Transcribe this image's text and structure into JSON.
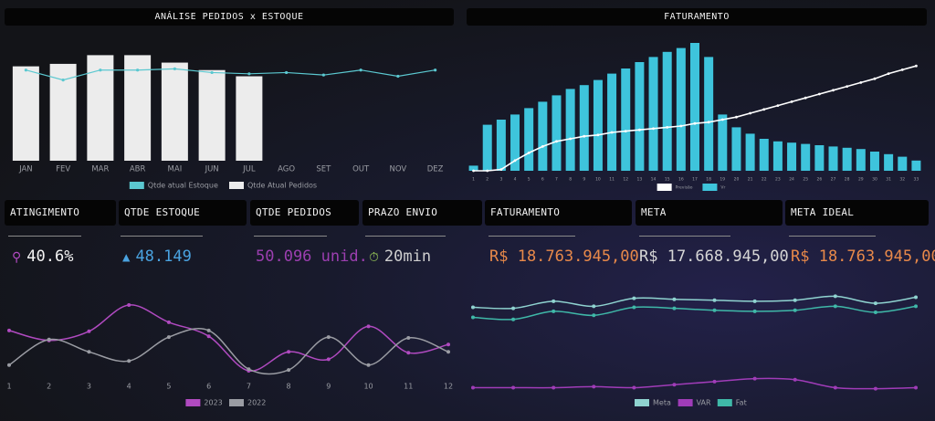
{
  "chart_data": [
    {
      "type": "bar",
      "title": "ANÁLISE PEDIDOS x ESTOQUE",
      "categories": [
        "JAN",
        "FEV",
        "MAR",
        "ABR",
        "MAI",
        "JUN",
        "JUL",
        "AGO",
        "SET",
        "OUT",
        "NOV",
        "DEZ"
      ],
      "ylim": [
        0,
        100
      ],
      "series": [
        {
          "name": "Qtde atual Estoque",
          "type": "line",
          "color": "#5bc8d0",
          "values": [
            73,
            65,
            73,
            73,
            74,
            71,
            70,
            71,
            69,
            73,
            68,
            73
          ]
        },
        {
          "name": "Qtde Atual Pedidos",
          "type": "bar",
          "color": "#ececec",
          "values": [
            76,
            78,
            85,
            85,
            79,
            73,
            68,
            null,
            null,
            null,
            null,
            null
          ]
        }
      ]
    },
    {
      "type": "bar",
      "title": "FATURAMENTO",
      "x": [
        1,
        2,
        3,
        4,
        5,
        6,
        7,
        8,
        9,
        10,
        11,
        12,
        13,
        14,
        15,
        16,
        17,
        18,
        19,
        20,
        21,
        22,
        23,
        24,
        25,
        26,
        27,
        28,
        29,
        30,
        31,
        32,
        33
      ],
      "xlim": [
        0.5,
        33.5
      ],
      "ylim": [
        0,
        100
      ],
      "series": [
        {
          "name": "Previsão",
          "type": "line",
          "color": "#ffffff",
          "values": [
            0,
            0,
            1,
            8,
            14,
            19,
            23,
            25,
            27,
            28,
            30,
            31,
            32,
            33,
            34,
            35,
            37,
            38,
            40,
            42,
            45,
            48,
            51,
            54,
            57,
            60,
            63,
            66,
            69,
            72,
            76,
            79,
            82
          ]
        },
        {
          "name": "Vr",
          "type": "bar",
          "color": "#3ec4dc",
          "values": [
            4,
            36,
            40,
            44,
            49,
            54,
            59,
            64,
            67,
            71,
            76,
            80,
            85,
            89,
            93,
            96,
            100,
            89,
            44,
            34,
            29,
            25,
            23,
            22,
            21,
            20,
            19,
            18,
            17,
            15,
            13,
            11,
            8
          ]
        }
      ]
    },
    {
      "type": "line",
      "smooth": true,
      "x": [
        1,
        2,
        3,
        4,
        5,
        6,
        7,
        8,
        9,
        10,
        11,
        12
      ],
      "xlim": [
        1,
        12
      ],
      "ylim": [
        0,
        100
      ],
      "series": [
        {
          "name": "2023",
          "color": "#b04ac0",
          "values": [
            59,
            47,
            58,
            90,
            69,
            52,
            10,
            33,
            24,
            64,
            32,
            42
          ]
        },
        {
          "name": "2022",
          "color": "#9a9ca3",
          "values": [
            17,
            48,
            33,
            22,
            51,
            59,
            12,
            11,
            51,
            17,
            50,
            33
          ]
        }
      ]
    },
    {
      "type": "line",
      "smooth": true,
      "ylim": [
        0,
        100
      ],
      "series": [
        {
          "name": "Meta",
          "color": "#8fd3d0",
          "values": [
            85,
            84,
            91,
            86,
            94,
            93,
            92,
            91,
            92,
            96,
            89,
            95
          ]
        },
        {
          "name": "VAR",
          "color": "#a03cb8",
          "values": [
            5,
            5,
            5,
            6,
            5,
            8,
            11,
            14,
            13,
            5,
            4,
            5
          ]
        },
        {
          "name": "Fat",
          "color": "#3fb8a8",
          "values": [
            75,
            73,
            81,
            77,
            85,
            84,
            82,
            81,
            82,
            86,
            80,
            86
          ]
        }
      ]
    }
  ],
  "kpis": [
    {
      "label": "ATINGIMENTO",
      "value": "40.6%",
      "color": "#f4f4f4"
    },
    {
      "label": "QTDE ESTOQUE",
      "value": "48.149",
      "color": "#4aa3e0"
    },
    {
      "label": "QTDE PEDIDOS",
      "value": "50.096 unid.",
      "color": "#9c3fb0"
    },
    {
      "label": "PRAZO ENVIO",
      "value": "20min",
      "color": "#cfcfcf"
    },
    {
      "label": "FATURAMENTO",
      "value": "R$ 18.763.945,00",
      "color": "#e8894a"
    },
    {
      "label": "META",
      "value": "R$ 17.668.945,00",
      "color": "#d6d6d6"
    },
    {
      "label": "META IDEAL",
      "value": "R$ 18.763.945,00",
      "color": "#e8894a"
    }
  ]
}
